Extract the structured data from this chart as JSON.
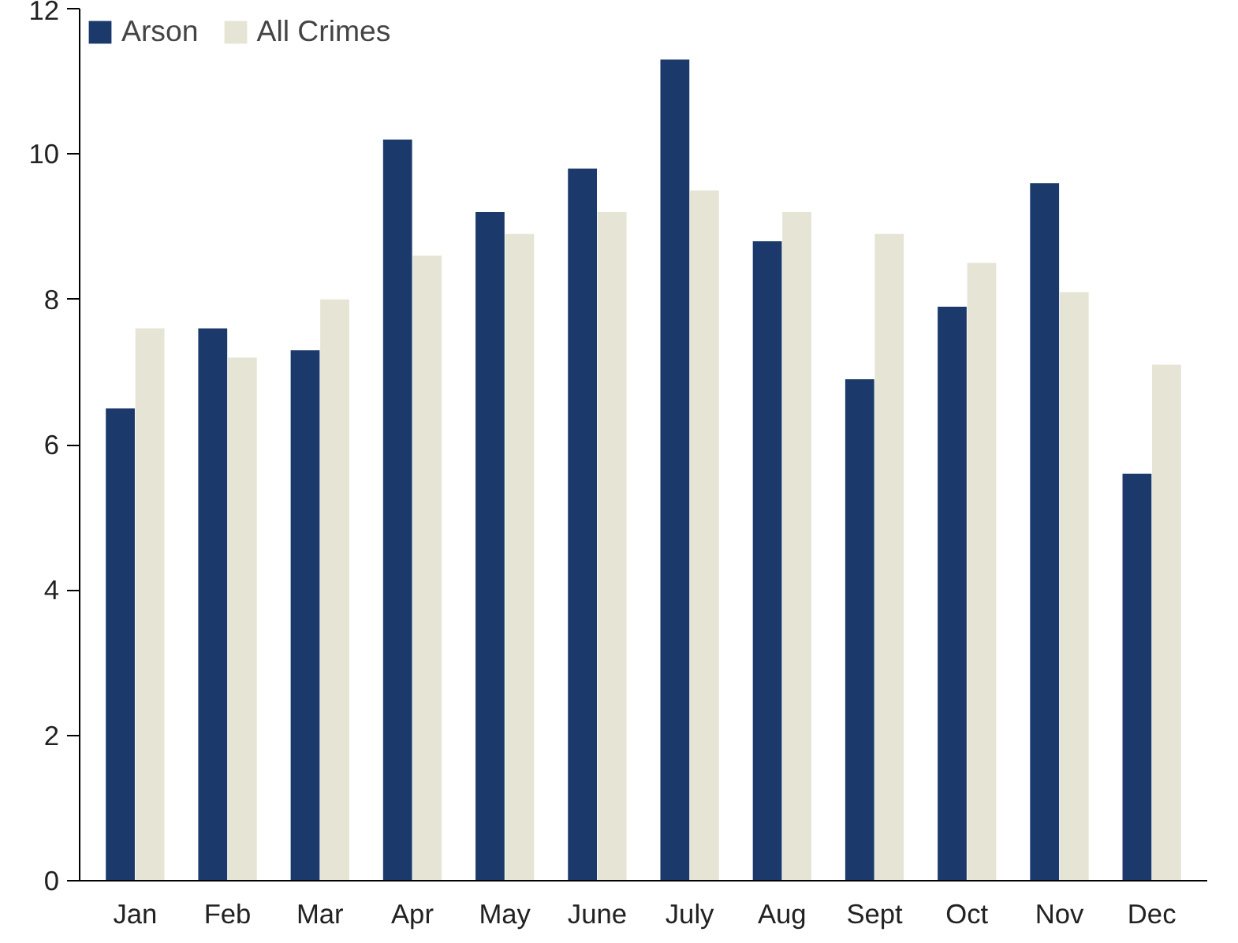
{
  "chart_data": {
    "type": "bar",
    "categories": [
      "Jan",
      "Feb",
      "Mar",
      "Apr",
      "May",
      "June",
      "July",
      "Aug",
      "Sept",
      "Oct",
      "Nov",
      "Dec"
    ],
    "series": [
      {
        "name": "Arson",
        "color": "#1b3a6b",
        "values": [
          6.5,
          7.6,
          7.3,
          10.2,
          9.2,
          9.8,
          11.3,
          8.8,
          6.9,
          7.9,
          9.6,
          5.6
        ]
      },
      {
        "name": "All Crimes",
        "color": "#e6e4d5",
        "values": [
          7.6,
          7.2,
          8.0,
          8.6,
          8.9,
          9.2,
          9.5,
          9.2,
          8.9,
          8.5,
          8.1,
          7.1
        ]
      }
    ],
    "ylim": [
      0,
      12
    ],
    "yticks": [
      0,
      2,
      4,
      6,
      8,
      10,
      12
    ],
    "grid": false,
    "legend": "top left"
  }
}
